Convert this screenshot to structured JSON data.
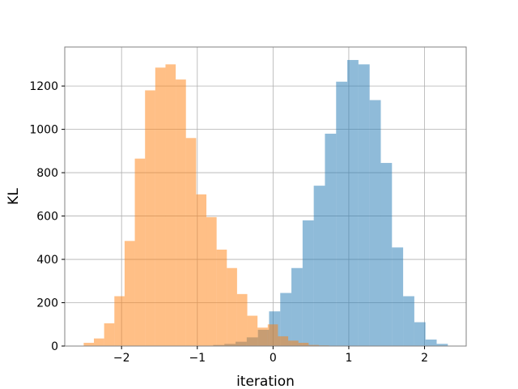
{
  "chart_data": {
    "type": "bar",
    "subtype": "overlapping-histogram",
    "xlabel": "iteration",
    "ylabel": "KL",
    "xlim": [
      -2.75,
      2.55
    ],
    "ylim": [
      0,
      1380
    ],
    "xticks": [
      -2,
      -1,
      0,
      1,
      2
    ],
    "xtick_labels": [
      "−2",
      "−1",
      "0",
      "1",
      "2"
    ],
    "yticks": [
      0,
      200,
      400,
      600,
      800,
      1000,
      1200
    ],
    "ytick_labels": [
      "0",
      "200",
      "400",
      "600",
      "800",
      "1000",
      "1200"
    ],
    "grid": true,
    "legend": "none",
    "series": [
      {
        "color": "#1f77b4",
        "alpha": 0.5,
        "bin_width": 0.1475,
        "bins_start": [
          -0.79,
          -0.6425,
          -0.495,
          -0.3475,
          -0.2,
          -0.0525,
          0.095,
          0.2425,
          0.39,
          0.5375,
          0.685,
          0.8325,
          0.98,
          1.1275,
          1.275,
          1.4225,
          1.57,
          1.7175,
          1.865,
          2.0125,
          2.16
        ],
        "values": [
          5,
          10,
          20,
          40,
          75,
          160,
          245,
          360,
          580,
          740,
          980,
          1220,
          1320,
          1300,
          1135,
          845,
          455,
          230,
          110,
          30,
          10
        ]
      },
      {
        "color": "#ff7f0e",
        "alpha": 0.5,
        "bin_width": 0.135,
        "bins_start": [
          -2.5,
          -2.365,
          -2.23,
          -2.095,
          -1.96,
          -1.825,
          -1.69,
          -1.555,
          -1.42,
          -1.285,
          -1.15,
          -1.015,
          -0.88,
          -0.745,
          -0.61,
          -0.475,
          -0.34,
          -0.205,
          -0.07,
          0.065,
          0.2,
          0.335,
          0.47,
          0.605
        ],
        "values": [
          15,
          35,
          105,
          230,
          485,
          865,
          1180,
          1285,
          1300,
          1230,
          960,
          700,
          595,
          445,
          360,
          240,
          140,
          85,
          100,
          45,
          25,
          15,
          5,
          3
        ]
      }
    ]
  }
}
